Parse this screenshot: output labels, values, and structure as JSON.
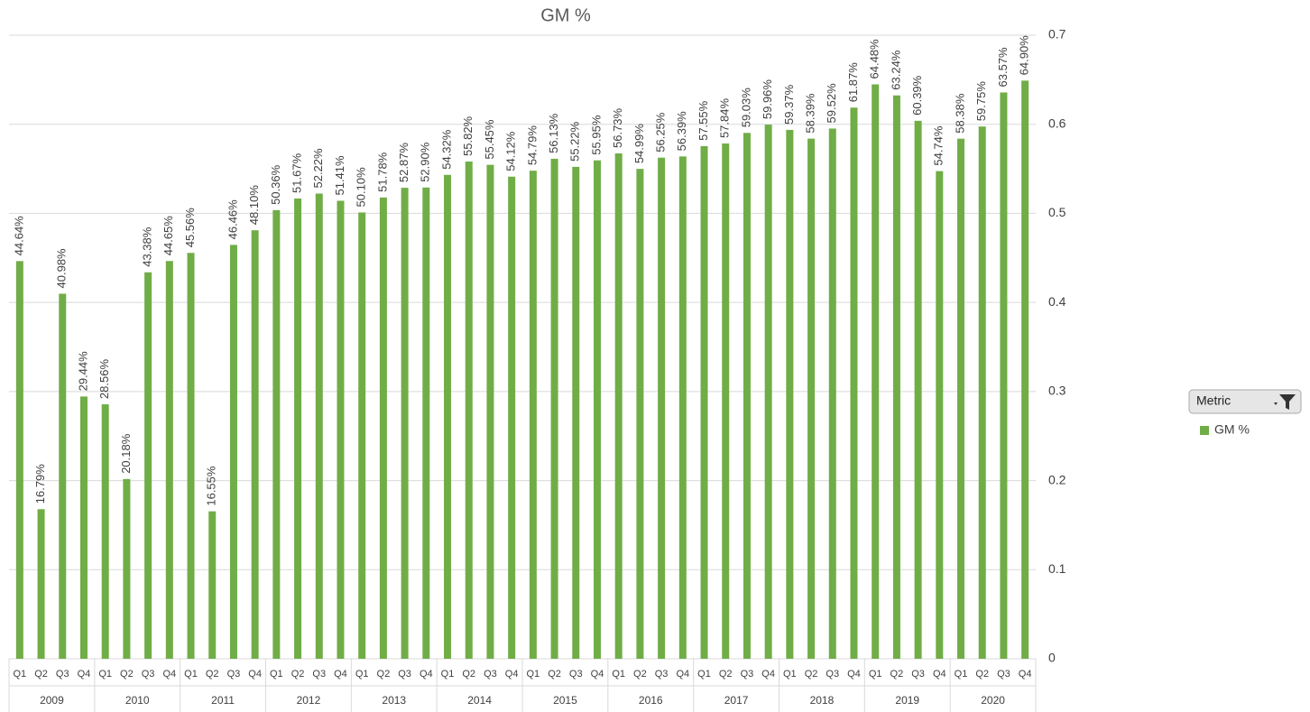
{
  "chart_data": {
    "type": "bar",
    "title": "GM %",
    "categories": [
      "Q1",
      "Q2",
      "Q3",
      "Q4",
      "Q1",
      "Q2",
      "Q3",
      "Q4",
      "Q1",
      "Q2",
      "Q3",
      "Q4",
      "Q1",
      "Q2",
      "Q3",
      "Q4",
      "Q1",
      "Q2",
      "Q3",
      "Q4",
      "Q1",
      "Q2",
      "Q3",
      "Q4",
      "Q1",
      "Q2",
      "Q3",
      "Q4",
      "Q1",
      "Q2",
      "Q3",
      "Q4",
      "Q1",
      "Q2",
      "Q3",
      "Q4",
      "Q1",
      "Q2",
      "Q3",
      "Q4",
      "Q1",
      "Q2",
      "Q3",
      "Q4",
      "Q1",
      "Q2",
      "Q3",
      "Q4"
    ],
    "groups": [
      "2009",
      "2010",
      "2011",
      "2012",
      "2013",
      "2014",
      "2015",
      "2016",
      "2017",
      "2018",
      "2019",
      "2020"
    ],
    "series": [
      {
        "name": "GM %",
        "color": "#70ad47",
        "values": [
          0.4464,
          0.1679,
          0.4098,
          0.2944,
          0.2856,
          0.2018,
          0.4338,
          0.4465,
          0.4556,
          0.1655,
          0.4646,
          0.481,
          0.5036,
          0.5167,
          0.5222,
          0.5141,
          0.501,
          0.5178,
          0.5287,
          0.529,
          0.5432,
          0.5582,
          0.5545,
          0.5412,
          0.5479,
          0.5613,
          0.5522,
          0.5595,
          0.5673,
          0.5499,
          0.5625,
          0.5639,
          0.5755,
          0.5784,
          0.5903,
          0.5996,
          0.5937,
          0.5839,
          0.5952,
          0.6187,
          0.6448,
          0.6324,
          0.6039,
          0.5474,
          0.5838,
          0.5975,
          0.6357,
          0.649
        ],
        "value_labels": [
          "44.64%",
          "16.79%",
          "40.98%",
          "29.44%",
          "28.56%",
          "20.18%",
          "43.38%",
          "44.65%",
          "45.56%",
          "16.55%",
          "46.46%",
          "48.10%",
          "50.36%",
          "51.67%",
          "52.22%",
          "51.41%",
          "50.10%",
          "51.78%",
          "52.87%",
          "52.90%",
          "54.32%",
          "55.82%",
          "55.45%",
          "54.12%",
          "54.79%",
          "56.13%",
          "55.22%",
          "55.95%",
          "56.73%",
          "54.99%",
          "56.25%",
          "56.39%",
          "57.55%",
          "57.84%",
          "59.03%",
          "59.96%",
          "59.37%",
          "58.39%",
          "59.52%",
          "61.87%",
          "64.48%",
          "63.24%",
          "60.39%",
          "54.74%",
          "58.38%",
          "59.75%",
          "63.57%",
          "64.90%"
        ]
      }
    ],
    "ylim": [
      0,
      0.7
    ],
    "yticks": [
      0,
      0.1,
      0.2,
      0.3,
      0.4,
      0.5,
      0.6,
      0.7
    ],
    "grid": true,
    "legend_title": "Metric",
    "legend": "right"
  }
}
